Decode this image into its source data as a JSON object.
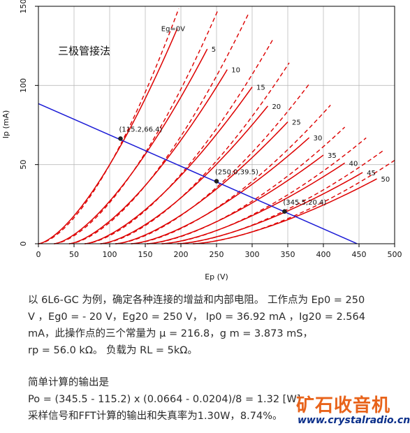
{
  "chart_data": {
    "type": "line",
    "title": "",
    "inset_label": "三极管接法",
    "xlabel": "Ep (V)",
    "ylabel": "Ip (mA)",
    "xlim": [
      0,
      500
    ],
    "ylim": [
      0,
      150
    ],
    "xticks": [
      "0",
      "50",
      "100",
      "150",
      "200",
      "250",
      "300",
      "350",
      "400",
      "450",
      "500"
    ],
    "yticks": [
      "0",
      "50",
      "100",
      "150"
    ],
    "grid": true,
    "curve_color": "#dd0000",
    "loadline_color": "#1a1ad6",
    "curve_family": {
      "solid_exponent": 1.5,
      "curves": [
        {
          "eg": 0,
          "label": "Eg=0V",
          "ep_at_zero": 0,
          "ep_end": 195,
          "ip_end": 136
        },
        {
          "eg": 5,
          "label": "5",
          "ep_at_zero": 22,
          "ep_end": 237,
          "ip_end": 123
        },
        {
          "eg": 10,
          "label": "10",
          "ep_at_zero": 43,
          "ep_end": 265,
          "ip_end": 110
        },
        {
          "eg": 15,
          "label": "15",
          "ep_at_zero": 65,
          "ep_end": 300,
          "ip_end": 99
        },
        {
          "eg": 20,
          "label": "20",
          "ep_at_zero": 87,
          "ep_end": 322,
          "ip_end": 87
        },
        {
          "eg": 25,
          "label": "25",
          "ep_at_zero": 108,
          "ep_end": 350,
          "ip_end": 77
        },
        {
          "eg": 30,
          "label": "30",
          "ep_at_zero": 130,
          "ep_end": 380,
          "ip_end": 67
        },
        {
          "eg": 35,
          "label": "35",
          "ep_at_zero": 152,
          "ep_end": 400,
          "ip_end": 56
        },
        {
          "eg": 40,
          "label": "40",
          "ep_at_zero": 173,
          "ep_end": 430,
          "ip_end": 51
        },
        {
          "eg": 45,
          "label": "45",
          "ep_at_zero": 195,
          "ep_end": 455,
          "ip_end": 45
        },
        {
          "eg": 50,
          "label": "50",
          "ep_at_zero": 217,
          "ep_end": 475,
          "ip_end": 41
        }
      ]
    },
    "load_line": {
      "x": [
        0,
        447.4
      ],
      "y": [
        88.5,
        0
      ]
    },
    "operating_points": [
      {
        "x": 115.2,
        "y": 66.4,
        "label": "(115.2,66.4)"
      },
      {
        "x": 250.0,
        "y": 39.5,
        "label": "(250.0,39.5)"
      },
      {
        "x": 345.5,
        "y": 20.4,
        "label": "(345.5,20.4)"
      }
    ]
  },
  "text": {
    "para1_lines": [
      "以 6L6-GC 为例，确定各种连接的增益和内部电阻。 工作点为 Ep0 = 250",
      "V ，Eg0 = - 20 V，Eg20 = 250 V， Ip0 = 36.92 mA ，Ig20 = 2.564",
      "mA，此操作点的三个常量为 μ = 216.8，g m = 3.873 mS，",
      "rp = 56.0 kΩ。 负载为 RL = 5kΩ。"
    ],
    "para2_lines": [
      "简单计算的输出是",
      "Po = (345.5 - 115.2) x (0.0664 - 0.0204)/8 = 1.32 [W]",
      "采样信号和FFT计算的输出和失真率为1.30W，8.74%。"
    ]
  },
  "watermark": {
    "title": "矿石收音机",
    "url": "www.crystalradio.cn",
    "title_color": "#e8631a",
    "url_color": "#0a2f8a"
  }
}
